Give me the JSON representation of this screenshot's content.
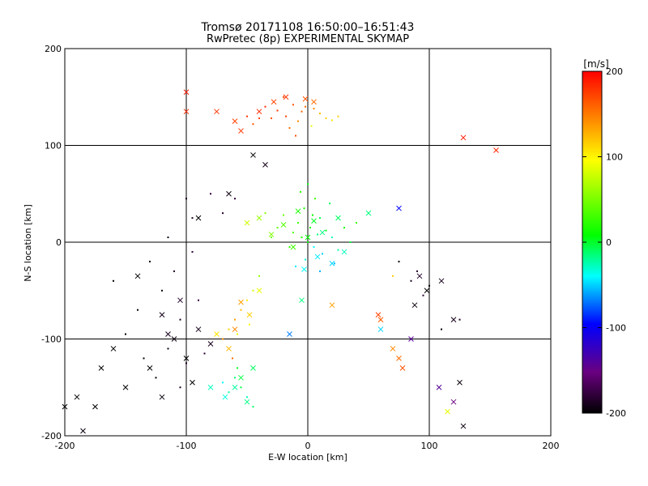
{
  "header": {
    "title": "Tromsø 20171108 16:50:00–16:51:43",
    "subtitle": "RwPretec (8p) EXPERIMENTAL SKYMAP"
  },
  "chart_data": {
    "type": "scatter",
    "title": "Tromsø 20171108 16:50:00–16:51:43",
    "subtitle": "RwPretec (8p) EXPERIMENTAL SKYMAP",
    "xlabel": "E-W location [km]",
    "ylabel": "N-S location [km]",
    "xlim": [
      -200,
      200
    ],
    "ylim": [
      -200,
      200
    ],
    "xticks": [
      -200,
      -100,
      0,
      100,
      200
    ],
    "yticks": [
      -200,
      -100,
      0,
      100,
      200
    ],
    "grid": true,
    "colorbar": {
      "label": "[m/s]",
      "range": [
        -200,
        200
      ],
      "ticks": [
        -200,
        -100,
        0,
        100,
        200
      ],
      "colormap": "rainbow (black-purple-blue-cyan-green-yellow-orange-red)"
    },
    "marker_types": [
      "dot",
      "x"
    ],
    "series": [
      {
        "kind": "dot",
        "points": [
          [
            -2,
            140,
            160
          ],
          [
            -5,
            135,
            165
          ],
          [
            -12,
            142,
            170
          ],
          [
            5,
            138,
            150
          ],
          [
            -18,
            130,
            175
          ],
          [
            -25,
            136,
            180
          ],
          [
            -30,
            128,
            170
          ],
          [
            10,
            133,
            130
          ],
          [
            -8,
            125,
            150
          ],
          [
            -35,
            140,
            185
          ],
          [
            -40,
            128,
            175
          ],
          [
            -45,
            122,
            170
          ],
          [
            15,
            128,
            120
          ],
          [
            20,
            126,
            110
          ],
          [
            3,
            120,
            90
          ],
          [
            -20,
            150,
            175
          ],
          [
            -15,
            118,
            160
          ],
          [
            -50,
            130,
            180
          ],
          [
            25,
            130,
            120
          ],
          [
            -10,
            110,
            170
          ],
          [
            -3,
            35,
            10
          ],
          [
            4,
            28,
            0
          ],
          [
            -8,
            20,
            20
          ],
          [
            10,
            25,
            -10
          ],
          [
            2,
            15,
            5
          ],
          [
            -12,
            10,
            30
          ],
          [
            8,
            8,
            -20
          ],
          [
            -5,
            5,
            15
          ],
          [
            15,
            12,
            -5
          ],
          [
            20,
            5,
            -30
          ],
          [
            0,
            0,
            0
          ],
          [
            -15,
            -5,
            20
          ],
          [
            5,
            -5,
            -40
          ],
          [
            12,
            -12,
            -50
          ],
          [
            -2,
            -18,
            -35
          ],
          [
            25,
            -8,
            -25
          ],
          [
            30,
            15,
            10
          ],
          [
            -20,
            28,
            40
          ],
          [
            -25,
            15,
            35
          ],
          [
            18,
            40,
            -15
          ],
          [
            -30,
            5,
            45
          ],
          [
            35,
            0,
            -10
          ],
          [
            6,
            45,
            25
          ],
          [
            -10,
            -25,
            -45
          ],
          [
            22,
            -22,
            -55
          ],
          [
            -35,
            30,
            50
          ],
          [
            10,
            -30,
            -60
          ],
          [
            40,
            20,
            20
          ],
          [
            -6,
            52,
            15
          ],
          [
            0,
            60,
            -5
          ],
          [
            -130,
            -20,
            -200
          ],
          [
            -110,
            -30,
            -185
          ],
          [
            -95,
            -10,
            -180
          ],
          [
            -120,
            -50,
            -195
          ],
          [
            -140,
            -70,
            -200
          ],
          [
            -105,
            -80,
            -190
          ],
          [
            -90,
            -60,
            -175
          ],
          [
            -150,
            -95,
            -200
          ],
          [
            -115,
            -110,
            -190
          ],
          [
            -100,
            -125,
            -185
          ],
          [
            -125,
            -140,
            -200
          ],
          [
            -85,
            -115,
            -180
          ],
          [
            -135,
            -120,
            -195
          ],
          [
            -105,
            -150,
            -190
          ],
          [
            -75,
            -95,
            -170
          ],
          [
            -160,
            -40,
            -200
          ],
          [
            -95,
            25,
            -185
          ],
          [
            -100,
            45,
            -190
          ],
          [
            -80,
            50,
            -175
          ],
          [
            -60,
            45,
            -180
          ],
          [
            -115,
            5,
            -190
          ],
          [
            -70,
            30,
            -185
          ],
          [
            -65,
            -90,
            120
          ],
          [
            -60,
            -80,
            140
          ],
          [
            -55,
            -70,
            130
          ],
          [
            -50,
            -60,
            110
          ],
          [
            -70,
            -100,
            150
          ],
          [
            -48,
            -85,
            100
          ],
          [
            -58,
            -95,
            90
          ],
          [
            -45,
            -50,
            80
          ],
          [
            -40,
            -35,
            60
          ],
          [
            -62,
            -120,
            160
          ],
          [
            -60,
            -140,
            -20
          ],
          [
            -55,
            -150,
            -10
          ],
          [
            -50,
            -160,
            -30
          ],
          [
            -65,
            -155,
            -25
          ],
          [
            -45,
            -170,
            -15
          ],
          [
            -58,
            -130,
            -5
          ],
          [
            -70,
            -145,
            -40
          ],
          [
            60,
            -80,
            170
          ],
          [
            75,
            -20,
            -200
          ],
          [
            85,
            -40,
            -190
          ],
          [
            95,
            -55,
            -180
          ],
          [
            70,
            -35,
            120
          ],
          [
            90,
            -30,
            -185
          ],
          [
            100,
            -45,
            -200
          ],
          [
            110,
            -90,
            -195
          ],
          [
            125,
            -80,
            -190
          ],
          [
            -75,
            -95,
            110
          ]
        ]
      },
      {
        "kind": "x",
        "points": [
          [
            -2,
            148,
            170
          ],
          [
            -18,
            150,
            180
          ],
          [
            -28,
            145,
            175
          ],
          [
            5,
            145,
            160
          ],
          [
            -40,
            135,
            185
          ],
          [
            -100,
            155,
            190
          ],
          [
            -100,
            135,
            185
          ],
          [
            -75,
            135,
            180
          ],
          [
            -60,
            125,
            175
          ],
          [
            -55,
            115,
            180
          ],
          [
            155,
            95,
            185
          ],
          [
            128,
            108,
            190
          ],
          [
            -45,
            90,
            -200
          ],
          [
            -35,
            80,
            -190
          ],
          [
            -8,
            32,
            10
          ],
          [
            5,
            22,
            -5
          ],
          [
            -20,
            18,
            30
          ],
          [
            12,
            10,
            -20
          ],
          [
            0,
            5,
            0
          ],
          [
            -12,
            -5,
            25
          ],
          [
            8,
            -15,
            -45
          ],
          [
            20,
            -22,
            -50
          ],
          [
            -3,
            -28,
            -40
          ],
          [
            30,
            -10,
            -30
          ],
          [
            -30,
            8,
            50
          ],
          [
            25,
            25,
            -15
          ],
          [
            -40,
            25,
            60
          ],
          [
            -50,
            20,
            80
          ],
          [
            50,
            30,
            -20
          ],
          [
            75,
            35,
            -100
          ],
          [
            -100,
            -120,
            -200
          ],
          [
            -110,
            -100,
            -195
          ],
          [
            -130,
            -130,
            -200
          ],
          [
            -90,
            -90,
            -190
          ],
          [
            -150,
            -150,
            -200
          ],
          [
            -175,
            -170,
            -200
          ],
          [
            -185,
            -195,
            -195
          ],
          [
            -120,
            -75,
            -190
          ],
          [
            -140,
            -35,
            -200
          ],
          [
            -105,
            -60,
            -185
          ],
          [
            -80,
            -105,
            -190
          ],
          [
            -95,
            -145,
            -200
          ],
          [
            -160,
            -110,
            -200
          ],
          [
            -120,
            -160,
            -195
          ],
          [
            -190,
            -160,
            -200
          ],
          [
            -200,
            -170,
            -200
          ],
          [
            -170,
            -130,
            -200
          ],
          [
            -115,
            -95,
            -190
          ],
          [
            -90,
            25,
            -200
          ],
          [
            -65,
            50,
            -195
          ],
          [
            -65,
            -110,
            130
          ],
          [
            -60,
            -90,
            150
          ],
          [
            -48,
            -75,
            120
          ],
          [
            -55,
            -62,
            140
          ],
          [
            -75,
            -95,
            110
          ],
          [
            -40,
            -50,
            90
          ],
          [
            -60,
            -150,
            -25
          ],
          [
            -55,
            -140,
            -10
          ],
          [
            -50,
            -165,
            -20
          ],
          [
            -68,
            -160,
            -35
          ],
          [
            -45,
            -130,
            -15
          ],
          [
            -80,
            -150,
            -30
          ],
          [
            60,
            -80,
            165
          ],
          [
            58,
            -75,
            175
          ],
          [
            78,
            -130,
            170
          ],
          [
            75,
            -120,
            160
          ],
          [
            70,
            -110,
            150
          ],
          [
            115,
            -175,
            90
          ],
          [
            108,
            -150,
            -140
          ],
          [
            120,
            -165,
            -150
          ],
          [
            125,
            -145,
            -195
          ],
          [
            128,
            -190,
            -195
          ],
          [
            110,
            -40,
            -190
          ],
          [
            98,
            -50,
            -200
          ],
          [
            88,
            -65,
            -195
          ],
          [
            92,
            -35,
            -185
          ],
          [
            120,
            -80,
            -190
          ],
          [
            20,
            -65,
            140
          ],
          [
            -5,
            -60,
            -20
          ],
          [
            -15,
            -95,
            -70
          ],
          [
            60,
            -90,
            -50
          ],
          [
            85,
            -100,
            -140
          ]
        ]
      }
    ]
  }
}
